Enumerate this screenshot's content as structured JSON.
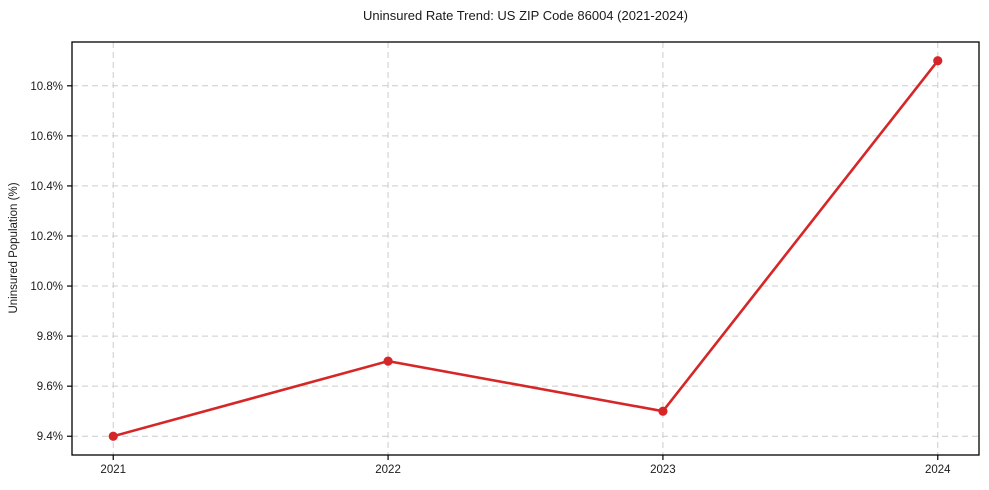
{
  "chart_data": {
    "type": "line",
    "title": "Uninsured Rate Trend: US ZIP Code 86004 (2021-2024)",
    "xlabel": "",
    "ylabel": "Uninsured Population (%)",
    "x": [
      2021,
      2022,
      2023,
      2024
    ],
    "values": [
      9.4,
      9.7,
      9.5,
      10.9
    ],
    "x_tick_labels": [
      "2021",
      "2022",
      "2023",
      "2024"
    ],
    "y_ticks": [
      9.4,
      9.6,
      9.8,
      10.0,
      10.2,
      10.4,
      10.6,
      10.8
    ],
    "y_tick_labels": [
      "9.4%",
      "9.6%",
      "9.8%",
      "10.0%",
      "10.2%",
      "10.4%",
      "10.6%",
      "10.8%"
    ],
    "xlim": [
      2020.85,
      2024.15
    ],
    "ylim": [
      9.325,
      10.975
    ],
    "grid": true,
    "legend": false,
    "line_color": "#d62728",
    "marker_color": "#d62728",
    "grid_color": "#cccccc",
    "axis_color": "#000000",
    "background_color": "#ffffff"
  }
}
